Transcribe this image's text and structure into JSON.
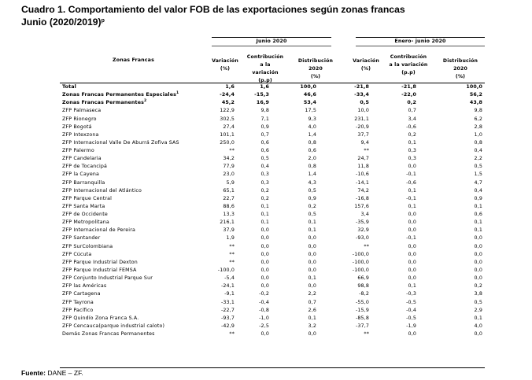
{
  "title": {
    "line1": "Cuadro 1. Comportamiento del valor FOB de las exportaciones según zonas francas",
    "line2": "Junio (2020/2019)",
    "line2_sup": "p"
  },
  "header": {
    "group1": "Junio 2020",
    "group2": "Enero- junio 2020",
    "zona": "Zonas Francas",
    "variacion_l1": "Variación",
    "variacion_l2": "(%)",
    "contribucion_l1": "Contribución",
    "contribucion_l2": "a la variación",
    "contribucion_l3": "(p.p)",
    "distribucion_l1": "Distribución",
    "distribucion_l2": "2020",
    "distribucion_l3": "(%)"
  },
  "rows": [
    {
      "name": "Total",
      "sup": "",
      "bold": true,
      "v1": "1,6",
      "c1": "1,6",
      "d1": "100,0",
      "v2": "-21,8",
      "c2": "-21,8",
      "d2": "100,0"
    },
    {
      "name": "Zonas Francas Permanentes Especiales",
      "sup": "1",
      "bold": true,
      "v1": "-24,4",
      "c1": "-15,3",
      "d1": "46,6",
      "v2": "-33,4",
      "c2": "-22,0",
      "d2": "56,2"
    },
    {
      "name": "Zonas Francas Permanentes",
      "sup": "2",
      "bold": true,
      "v1": "45,2",
      "c1": "16,9",
      "d1": "53,4",
      "v2": "0,5",
      "c2": "0,2",
      "d2": "43,8"
    },
    {
      "name": "ZFP Palmaseca",
      "sup": "",
      "bold": false,
      "v1": "122,9",
      "c1": "9,8",
      "d1": "17,5",
      "v2": "10,0",
      "c2": "0,7",
      "d2": "9,8"
    },
    {
      "name": "ZFP Rionegro",
      "sup": "",
      "bold": false,
      "v1": "302,5",
      "c1": "7,1",
      "d1": "9,3",
      "v2": "231,1",
      "c2": "3,4",
      "d2": "6,2"
    },
    {
      "name": "ZFP Bogotá",
      "sup": "",
      "bold": false,
      "v1": "27,4",
      "c1": "0,9",
      "d1": "4,0",
      "v2": "-20,9",
      "c2": "-0,6",
      "d2": "2,8"
    },
    {
      "name": "ZFP Intexzona",
      "sup": "",
      "bold": false,
      "v1": "101,1",
      "c1": "0,7",
      "d1": "1,4",
      "v2": "37,7",
      "c2": "0,2",
      "d2": "1,0"
    },
    {
      "name": "ZFP Internacional Valle De Aburrá Zofiva SAS",
      "sup": "",
      "bold": false,
      "v1": "250,0",
      "c1": "0,6",
      "d1": "0,8",
      "v2": "9,4",
      "c2": "0,1",
      "d2": "0,8"
    },
    {
      "name": "ZFP Palermo",
      "sup": "",
      "bold": false,
      "v1": "**",
      "c1": "0,6",
      "d1": "0,6",
      "v2": "**",
      "c2": "0,3",
      "d2": "0,4"
    },
    {
      "name": "ZFP Candelaria",
      "sup": "",
      "bold": false,
      "v1": "34,2",
      "c1": "0,5",
      "d1": "2,0",
      "v2": "24,7",
      "c2": "0,3",
      "d2": "2,2"
    },
    {
      "name": "ZFP de Tocancipá",
      "sup": "",
      "bold": false,
      "v1": "77,9",
      "c1": "0,4",
      "d1": "0,8",
      "v2": "11,8",
      "c2": "0,0",
      "d2": "0,5"
    },
    {
      "name": "ZFP la Cayena",
      "sup": "",
      "bold": false,
      "v1": "23,0",
      "c1": "0,3",
      "d1": "1,4",
      "v2": "-10,6",
      "c2": "-0,1",
      "d2": "1,5"
    },
    {
      "name": "ZFP Barranquilla",
      "sup": "",
      "bold": false,
      "v1": "5,9",
      "c1": "0,3",
      "d1": "4,3",
      "v2": "-14,1",
      "c2": "-0,6",
      "d2": "4,7"
    },
    {
      "name": "ZFP Internacional del Atlántico",
      "sup": "",
      "bold": false,
      "v1": "65,1",
      "c1": "0,2",
      "d1": "0,5",
      "v2": "74,2",
      "c2": "0,1",
      "d2": "0,4"
    },
    {
      "name": "ZFP Parque Central",
      "sup": "",
      "bold": false,
      "v1": "22,7",
      "c1": "0,2",
      "d1": "0,9",
      "v2": "-16,8",
      "c2": "-0,1",
      "d2": "0,9"
    },
    {
      "name": "ZFP Santa Marta",
      "sup": "",
      "bold": false,
      "v1": "88,6",
      "c1": "0,1",
      "d1": "0,2",
      "v2": "157,6",
      "c2": "0,1",
      "d2": "0,1"
    },
    {
      "name": "ZFP de Occidente",
      "sup": "",
      "bold": false,
      "v1": "13,3",
      "c1": "0,1",
      "d1": "0,5",
      "v2": "3,4",
      "c2": "0,0",
      "d2": "0,6"
    },
    {
      "name": "ZFP Metropolitana",
      "sup": "",
      "bold": false,
      "v1": "216,1",
      "c1": "0,1",
      "d1": "0,1",
      "v2": "-35,9",
      "c2": "0,0",
      "d2": "0,1"
    },
    {
      "name": "ZFP Internacional de Pereira",
      "sup": "",
      "bold": false,
      "v1": "37,9",
      "c1": "0,0",
      "d1": "0,1",
      "v2": "32,9",
      "c2": "0,0",
      "d2": "0,1"
    },
    {
      "name": "ZFP Santander",
      "sup": "",
      "bold": false,
      "v1": "1,9",
      "c1": "0,0",
      "d1": "0,0",
      "v2": "-93,0",
      "c2": "-0,1",
      "d2": "0,0"
    },
    {
      "name": "ZFP SurColombiana",
      "sup": "",
      "bold": false,
      "v1": "**",
      "c1": "0,0",
      "d1": "0,0",
      "v2": "**",
      "c2": "0,0",
      "d2": "0,0"
    },
    {
      "name": "ZFP Cúcuta",
      "sup": "",
      "bold": false,
      "v1": "**",
      "c1": "0,0",
      "d1": "0,0",
      "v2": "-100,0",
      "c2": "0,0",
      "d2": "0,0"
    },
    {
      "name": "ZFP Parque Industrial Dexton",
      "sup": "",
      "bold": false,
      "v1": "**",
      "c1": "0,0",
      "d1": "0,0",
      "v2": "-100,0",
      "c2": "0,0",
      "d2": "0,0"
    },
    {
      "name": "ZFP Parque Industrial FEMSA",
      "sup": "",
      "bold": false,
      "v1": "-100,0",
      "c1": "0,0",
      "d1": "0,0",
      "v2": "-100,0",
      "c2": "0,0",
      "d2": "0,0"
    },
    {
      "name": "ZFP Conjunto Industrial Parque Sur",
      "sup": "",
      "bold": false,
      "v1": "-5,4",
      "c1": "0,0",
      "d1": "0,1",
      "v2": "66,9",
      "c2": "0,0",
      "d2": "0,0"
    },
    {
      "name": "ZFP las Américas",
      "sup": "",
      "bold": false,
      "v1": "-24,1",
      "c1": "0,0",
      "d1": "0,0",
      "v2": "98,8",
      "c2": "0,1",
      "d2": "0,2"
    },
    {
      "name": "ZFP Cartagena",
      "sup": "",
      "bold": false,
      "v1": "-9,1",
      "c1": "-0,2",
      "d1": "2,2",
      "v2": "-8,2",
      "c2": "-0,3",
      "d2": "3,8"
    },
    {
      "name": "ZFP Tayrona",
      "sup": "",
      "bold": false,
      "v1": "-33,1",
      "c1": "-0,4",
      "d1": "0,7",
      "v2": "-55,0",
      "c2": "-0,5",
      "d2": "0,5"
    },
    {
      "name": "ZFP Pacífico",
      "sup": "",
      "bold": false,
      "v1": "-22,7",
      "c1": "-0,8",
      "d1": "2,6",
      "v2": "-15,9",
      "c2": "-0,4",
      "d2": "2,9"
    },
    {
      "name": "ZFP Quindío Zona Franca S.A.",
      "sup": "",
      "bold": false,
      "v1": "-93,7",
      "c1": "-1,0",
      "d1": "0,1",
      "v2": "-85,8",
      "c2": "-0,5",
      "d2": "0,1"
    },
    {
      "name": "ZFP Cencauca(parque industrial caloto)",
      "sup": "",
      "bold": false,
      "v1": "-42,9",
      "c1": "-2,5",
      "d1": "3,2",
      "v2": "-37,7",
      "c2": "-1,9",
      "d2": "4,0"
    },
    {
      "name": "Demás Zonas Francas Permanentes",
      "sup": "",
      "bold": false,
      "v1": "**",
      "c1": "0,0",
      "d1": "0,0",
      "v2": "**",
      "c2": "0,0",
      "d2": "0,0"
    }
  ],
  "source": {
    "label": "Fuente:",
    "text": " DANE – ZF."
  }
}
